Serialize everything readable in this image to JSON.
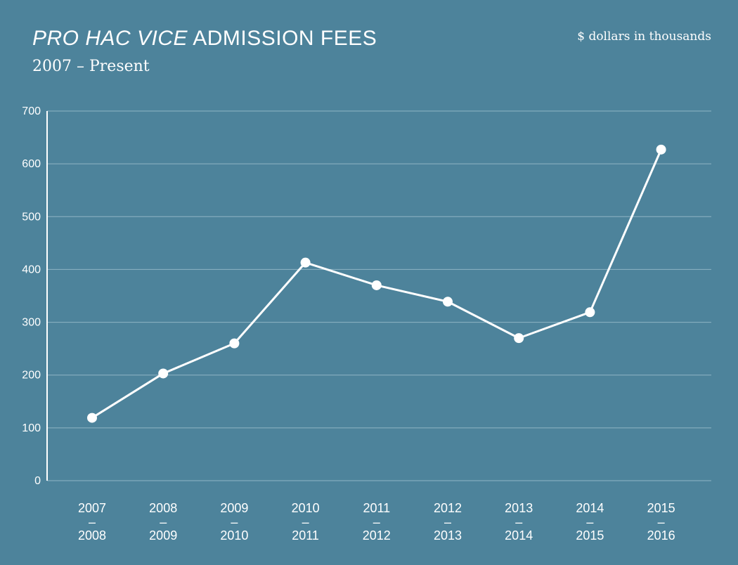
{
  "header": {
    "title_italic": "PRO HAC VICE",
    "title_rest": " ADMISSION FEES",
    "subtitle": "2007 – Present",
    "units": "$ dollars in thousands"
  },
  "colors": {
    "background": "#4d839b",
    "line": "#ffffff",
    "grid": "#8fb4c4"
  },
  "chart_data": {
    "type": "line",
    "title": "PRO HAC VICE ADMISSION FEES",
    "subtitle": "2007 – Present",
    "ylabel": "$ dollars in thousands",
    "xlabel": "",
    "categories": [
      [
        "2007",
        "–",
        "2008"
      ],
      [
        "2008",
        "–",
        "2009"
      ],
      [
        "2009",
        "–",
        "2010"
      ],
      [
        "2010",
        "–",
        "2011"
      ],
      [
        "2011",
        "–",
        "2012"
      ],
      [
        "2012",
        "–",
        "2013"
      ],
      [
        "2013",
        "–",
        "2014"
      ],
      [
        "2014",
        "–",
        "2015"
      ],
      [
        "2015",
        "–",
        "2016"
      ]
    ],
    "series": [
      {
        "values": [
          119,
          203,
          260,
          413,
          370,
          339,
          270,
          319,
          627
        ]
      }
    ],
    "ylim": [
      0,
      700
    ],
    "yticks": [
      0,
      100,
      200,
      300,
      400,
      500,
      600,
      700
    ],
    "grid": true,
    "legend": "none"
  }
}
